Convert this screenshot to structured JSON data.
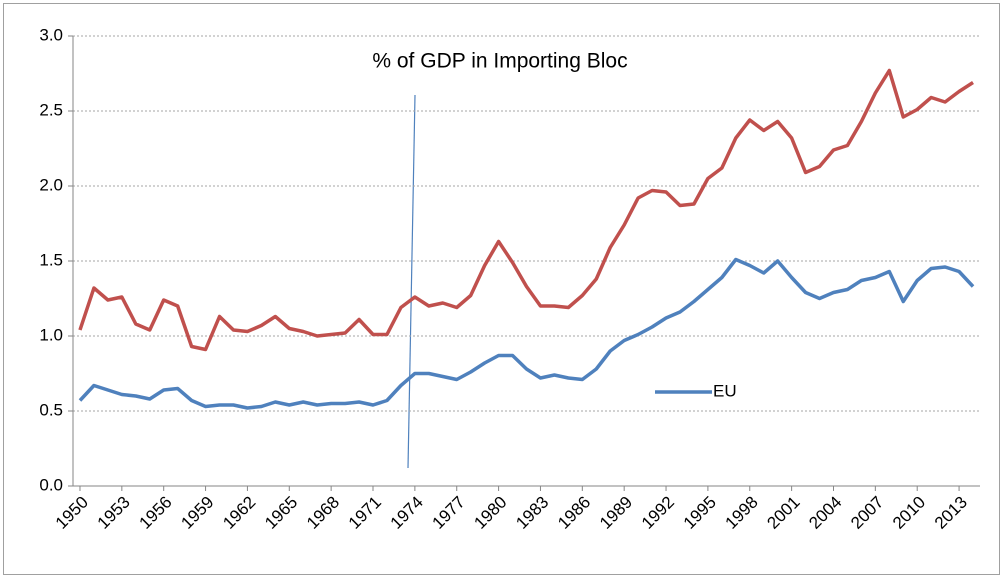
{
  "chart_data": {
    "type": "line",
    "title": "% of GDP in Importing Bloc",
    "x": [
      1950,
      1951,
      1952,
      1953,
      1954,
      1955,
      1956,
      1957,
      1958,
      1959,
      1960,
      1961,
      1962,
      1963,
      1964,
      1965,
      1966,
      1967,
      1968,
      1969,
      1970,
      1971,
      1972,
      1973,
      1974,
      1975,
      1976,
      1977,
      1978,
      1979,
      1980,
      1981,
      1982,
      1983,
      1984,
      1985,
      1986,
      1987,
      1988,
      1989,
      1990,
      1991,
      1992,
      1993,
      1994,
      1995,
      1996,
      1997,
      1998,
      1999,
      2000,
      2001,
      2002,
      2003,
      2004,
      2005,
      2006,
      2007,
      2008,
      2009,
      2010,
      2011,
      2012,
      2013,
      2014
    ],
    "series": [
      {
        "color": "#c0504d",
        "values": [
          1.04,
          1.32,
          1.24,
          1.26,
          1.08,
          1.04,
          1.24,
          1.2,
          0.93,
          0.91,
          1.13,
          1.04,
          1.03,
          1.07,
          1.13,
          1.05,
          1.03,
          1.0,
          1.01,
          1.02,
          1.11,
          1.01,
          1.01,
          1.19,
          1.26,
          1.2,
          1.22,
          1.19,
          1.27,
          1.47,
          1.63,
          1.49,
          1.33,
          1.2,
          1.2,
          1.19,
          1.27,
          1.38,
          1.59,
          1.74,
          1.92,
          1.97,
          1.96,
          1.87,
          1.88,
          2.05,
          2.12,
          2.32,
          2.44,
          2.37,
          2.43,
          2.32,
          2.09,
          2.13,
          2.24,
          2.27,
          2.43,
          2.62,
          2.77,
          2.46,
          2.51,
          2.59,
          2.56,
          2.63,
          2.69
        ]
      },
      {
        "name": "EU",
        "color": "#4f81bd",
        "values": [
          0.57,
          0.67,
          0.64,
          0.61,
          0.6,
          0.58,
          0.64,
          0.65,
          0.57,
          0.53,
          0.54,
          0.54,
          0.52,
          0.53,
          0.56,
          0.54,
          0.56,
          0.54,
          0.55,
          0.55,
          0.56,
          0.54,
          0.57,
          0.67,
          0.75,
          0.75,
          0.73,
          0.71,
          0.76,
          0.82,
          0.87,
          0.87,
          0.78,
          0.72,
          0.74,
          0.72,
          0.71,
          0.78,
          0.9,
          0.97,
          1.01,
          1.06,
          1.12,
          1.16,
          1.23,
          1.31,
          1.39,
          1.51,
          1.47,
          1.42,
          1.5,
          1.39,
          1.29,
          1.25,
          1.29,
          1.31,
          1.37,
          1.39,
          1.43,
          1.23,
          1.37,
          1.45,
          1.46,
          1.43,
          1.33
        ]
      }
    ],
    "xlim": [
      1949.5,
      2014.5
    ],
    "xticks": [
      1950,
      1953,
      1956,
      1959,
      1962,
      1965,
      1968,
      1971,
      1974,
      1977,
      1980,
      1983,
      1986,
      1989,
      1992,
      1995,
      1998,
      2001,
      2004,
      2007,
      2010,
      2013
    ],
    "ylim": [
      0,
      3
    ],
    "yticks": [
      {
        "value": 0,
        "label": "0.0"
      },
      {
        "value": 0.5,
        "label": "0.5"
      },
      {
        "value": 1,
        "label": "1.0"
      },
      {
        "value": 1.5,
        "label": "1.5"
      },
      {
        "value": 2,
        "label": "2.0"
      },
      {
        "value": 2.5,
        "label": "2.5"
      },
      {
        "value": 3,
        "label": "3.0"
      }
    ],
    "grid": true
  }
}
